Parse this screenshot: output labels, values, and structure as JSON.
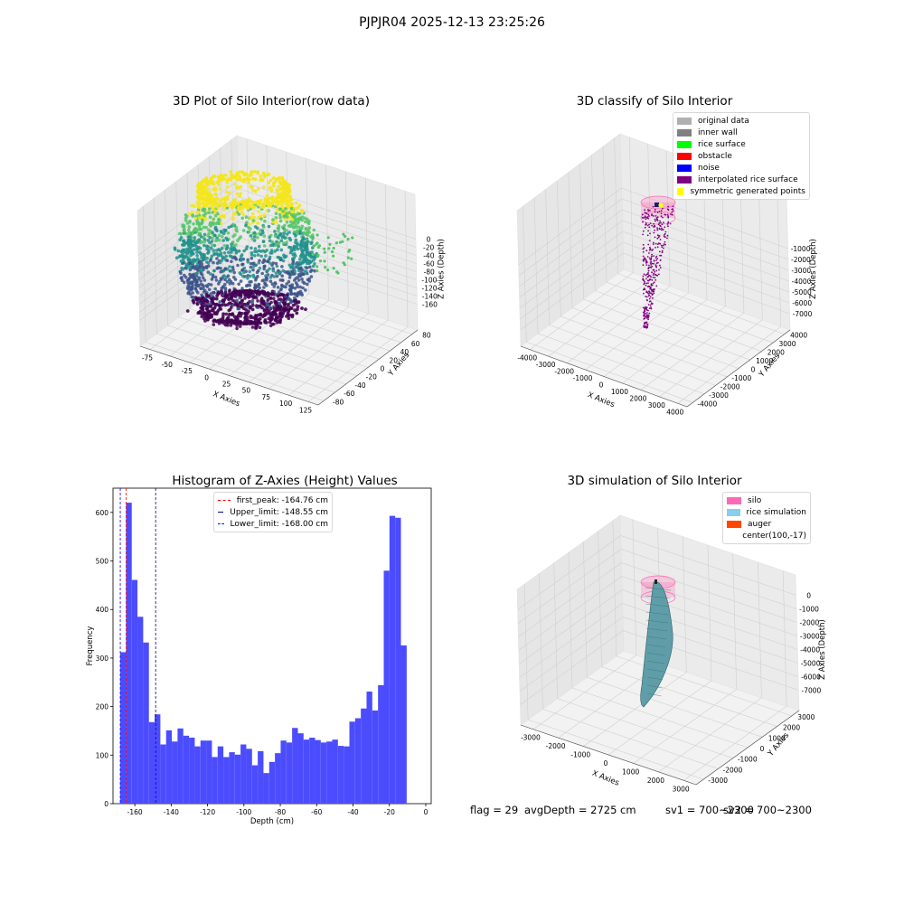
{
  "suptitle": "PJPJR04 2025-12-13 23:25:26",
  "chart_data": [
    {
      "type": "scatter",
      "title": "3D Plot of Silo Interior(row data)",
      "xlabel": "X Axies",
      "ylabel": "Y Axies",
      "zlabel": "Z Axies (Depth)",
      "xticks": [
        "-75",
        "-50",
        "-25",
        "0",
        "25",
        "50",
        "75",
        "100",
        "125"
      ],
      "yticks": [
        "-80",
        "-60",
        "-40",
        "-20",
        "0",
        "20",
        "40",
        "60",
        "80"
      ],
      "zticks": [
        "0",
        "-20",
        "-40",
        "-60",
        "-80",
        "-100",
        "-120",
        "-140",
        "-160"
      ],
      "colormap": "viridis",
      "colors": {
        "top": "#f4e61e",
        "upper": "#55c667",
        "middle": "#21918c",
        "lower": "#3b528b",
        "bottom": "#440154"
      }
    },
    {
      "type": "scatter",
      "title": "3D classify of Silo Interior",
      "xlabel": "X Axies",
      "ylabel": "Y Axies",
      "zlabel": "Z Axies (Depth)",
      "xticks": [
        "-4000",
        "-3000",
        "-2000",
        "-1000",
        "0",
        "1000",
        "2000",
        "3000",
        "4000"
      ],
      "yticks": [
        "-4000",
        "-3000",
        "-2000",
        "-1000",
        "0",
        "1000",
        "2000",
        "3000",
        "4000"
      ],
      "zticks": [
        "-1000",
        "-2000",
        "-3000",
        "-4000",
        "-5000",
        "-6000",
        "-7000"
      ],
      "legend": [
        {
          "label": "original data",
          "color": "#b0b0b0"
        },
        {
          "label": "inner wall",
          "color": "#808080"
        },
        {
          "label": "rice surface",
          "color": "#00ff00"
        },
        {
          "label": "obstacle",
          "color": "#ff0000"
        },
        {
          "label": "noise",
          "color": "#0000ff"
        },
        {
          "label": "interpolated rice surface",
          "color": "#800080"
        },
        {
          "label": "symmetric generated points",
          "color": "#ffff00"
        }
      ]
    },
    {
      "type": "bar",
      "title": "Histogram of Z-Axies (Height) Values",
      "xlabel": "Depth (cm)",
      "ylabel": "Frequency",
      "xlim": [
        -172,
        3
      ],
      "ylim": [
        0,
        650
      ],
      "xticks": [
        -160,
        -140,
        -120,
        -100,
        -80,
        -60,
        -40,
        -20,
        0
      ],
      "yticks": [
        0,
        100,
        200,
        300,
        400,
        500,
        600
      ],
      "bar_color": "#4c4cff",
      "bin_start": -168.0,
      "bin_width": 3.15,
      "values": [
        312,
        620,
        461,
        385,
        332,
        168,
        184,
        122,
        151,
        128,
        155,
        140,
        136,
        118,
        130,
        130,
        96,
        118,
        96,
        106,
        101,
        122,
        113,
        79,
        108,
        63,
        86,
        104,
        130,
        126,
        156,
        145,
        132,
        136,
        131,
        126,
        128,
        132,
        119,
        118,
        169,
        176,
        196,
        231,
        192,
        244,
        480,
        593,
        589,
        326
      ],
      "lines": [
        {
          "label": "first_peak: -164.76 cm",
          "x": -164.76,
          "color": "#ff0000"
        },
        {
          "label": "Upper_limit: -148.55 cm",
          "x": -148.55,
          "color": "#00008b"
        },
        {
          "label": "Lower_limit: -168.00 cm",
          "x": -168.0,
          "color": "#0000ff"
        }
      ]
    },
    {
      "type": "area",
      "title": "3D simulation of Silo Interior",
      "xlabel": "X Axies",
      "ylabel": "Y Axies",
      "zlabel": "Z Axies (Depth)",
      "xticks": [
        "-3000",
        "-2000",
        "-1000",
        "0",
        "1000",
        "2000",
        "3000"
      ],
      "yticks": [
        "-3000",
        "-2000",
        "-1000",
        "0",
        "1000",
        "2000",
        "3000"
      ],
      "zticks": [
        "0",
        "-1000",
        "-2000",
        "-3000",
        "-4000",
        "-5000",
        "-6000",
        "-7000"
      ],
      "legend": [
        {
          "label": "silo",
          "color": "#ff69b4"
        },
        {
          "label": "rice simulation",
          "color": "#87ceeb"
        },
        {
          "label": "auger",
          "color": "#ff4500"
        },
        {
          "label": "center(100,-17)",
          "color": ""
        }
      ]
    }
  ],
  "footer": {
    "flag": "flag = 29",
    "avg": "avgDepth = 2725 cm",
    "sv1": "sv1 = 700~2300",
    "sv2": "sv2 = 700~2300"
  }
}
